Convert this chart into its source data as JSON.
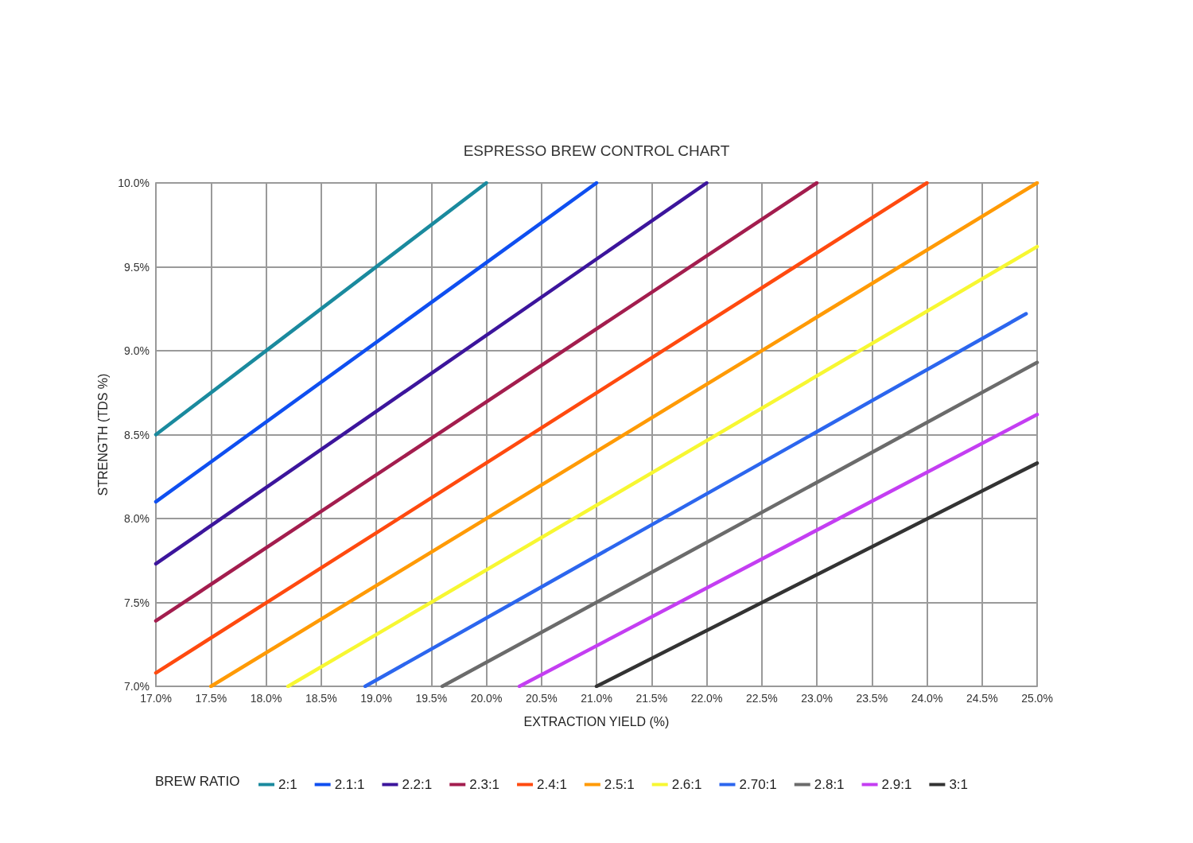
{
  "chart_data": {
    "type": "line",
    "title": "ESPRESSO BREW CONTROL CHART",
    "xlabel": "EXTRACTION YIELD (%)",
    "ylabel": "STRENGTH (TDS %)",
    "legend_title": "BREW RATIO",
    "xlim": [
      17,
      25
    ],
    "ylim": [
      7,
      10
    ],
    "xticks": [
      {
        "value": 17,
        "label": "17.0%"
      },
      {
        "value": 17.5,
        "label": "17.5%"
      },
      {
        "value": 18,
        "label": "18.0%"
      },
      {
        "value": 18.5,
        "label": "18.5%"
      },
      {
        "value": 19,
        "label": "19.0%"
      },
      {
        "value": 19.5,
        "label": "19.5%"
      },
      {
        "value": 20,
        "label": "20.0%"
      },
      {
        "value": 20.5,
        "label": "20.5%"
      },
      {
        "value": 21,
        "label": "21.0%"
      },
      {
        "value": 21.5,
        "label": "21.5%"
      },
      {
        "value": 22,
        "label": "22.0%"
      },
      {
        "value": 22.5,
        "label": "22.5%"
      },
      {
        "value": 23,
        "label": "23.0%"
      },
      {
        "value": 23.5,
        "label": "23.5%"
      },
      {
        "value": 24,
        "label": "24.0%"
      },
      {
        "value": 24.5,
        "label": "24.5%"
      },
      {
        "value": 25,
        "label": "25.0%"
      }
    ],
    "yticks": [
      {
        "value": 7,
        "label": "7.0%"
      },
      {
        "value": 7.5,
        "label": "7.5%"
      },
      {
        "value": 8,
        "label": "8.0%"
      },
      {
        "value": 8.5,
        "label": "8.5%"
      },
      {
        "value": 9,
        "label": "9.0%"
      },
      {
        "value": 9.5,
        "label": "9.5%"
      },
      {
        "value": 10,
        "label": "10.0%"
      }
    ],
    "grid": true,
    "legend": "bottom",
    "marker": "none",
    "line_style": "solid",
    "series": [
      {
        "name": "2:1",
        "color": "#1a8a9e",
        "x": [
          17,
          20
        ],
        "values": [
          8.5,
          10
        ]
      },
      {
        "name": "2.1:1",
        "color": "#0f4ff0",
        "x": [
          17,
          21
        ],
        "values": [
          8.1,
          10
        ]
      },
      {
        "name": "2.2:1",
        "color": "#3c159c",
        "x": [
          17,
          22
        ],
        "values": [
          7.73,
          10
        ]
      },
      {
        "name": "2.3:1",
        "color": "#a31d4e",
        "x": [
          17,
          23
        ],
        "values": [
          7.39,
          10
        ]
      },
      {
        "name": "2.4:1",
        "color": "#ff4a0f",
        "x": [
          17,
          24
        ],
        "values": [
          7.08,
          10
        ]
      },
      {
        "name": "2.5:1",
        "color": "#ff9a05",
        "x": [
          17.5,
          25
        ],
        "values": [
          7,
          10
        ]
      },
      {
        "name": "2.6:1",
        "color": "#f7f732",
        "x": [
          18.2,
          25
        ],
        "values": [
          7,
          9.62
        ]
      },
      {
        "name": "2.70:1",
        "color": "#2c66ee",
        "x": [
          18.9,
          24.9
        ],
        "values": [
          7,
          9.22
        ]
      },
      {
        "name": "2.8:1",
        "color": "#6b6b6b",
        "x": [
          19.6,
          25
        ],
        "values": [
          7,
          8.93
        ]
      },
      {
        "name": "2.9:1",
        "color": "#c43ef2",
        "x": [
          20.3,
          25
        ],
        "values": [
          7,
          8.62
        ]
      },
      {
        "name": "3:1",
        "color": "#333333",
        "x": [
          21,
          25
        ],
        "values": [
          7,
          8.33
        ]
      }
    ]
  }
}
